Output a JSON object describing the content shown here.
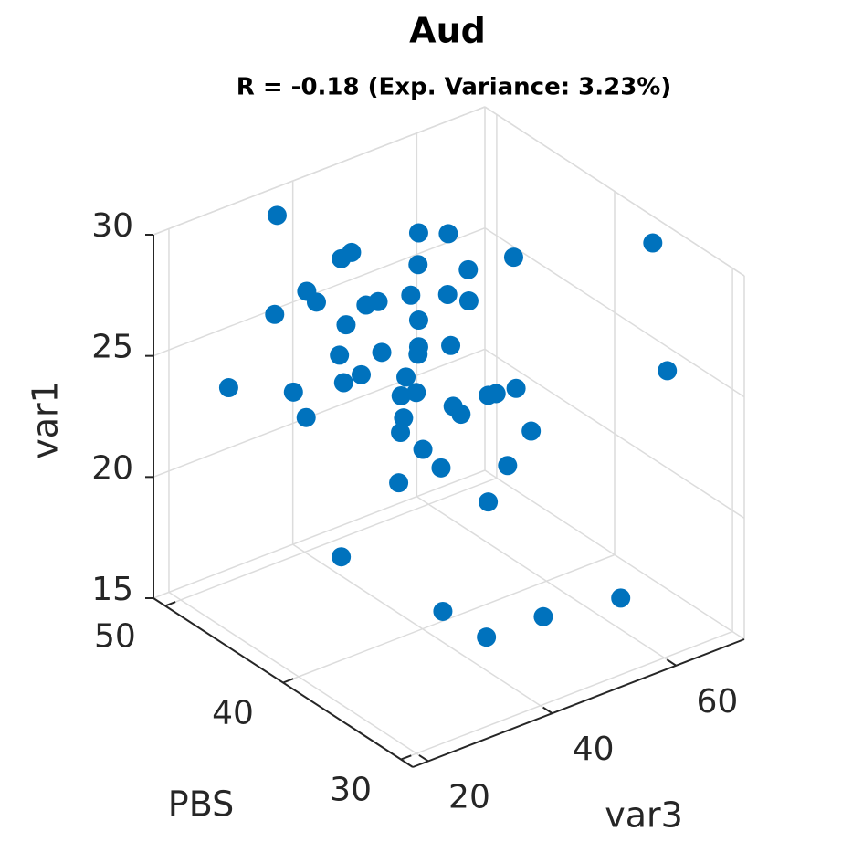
{
  "chart_data": {
    "type": "scatter3d",
    "title": "Aud",
    "subtitle": "R = -0.18 (Exp. Variance: 3.23%)",
    "xlabel": "var3",
    "ylabel": "PBS",
    "zlabel": "var1",
    "color": "#0072bd",
    "grid": true,
    "xlim": [
      17.5,
      71
    ],
    "ylim": [
      29,
      51
    ],
    "zlim": [
      15,
      30
    ],
    "xticks": [
      20,
      40,
      60
    ],
    "yticks": [
      30,
      40,
      50
    ],
    "zticks": [
      15,
      20,
      25,
      30
    ],
    "x": [
      28.9,
      24.7,
      28.7,
      30.2,
      31.3,
      31.4,
      32.2,
      34.3,
      35.2,
      34.7,
      34.2,
      34.5,
      36.0,
      36.4,
      37.4,
      37.8,
      40.9,
      43.4,
      40.8,
      45.1,
      40.2,
      43.3,
      45.2,
      40.9,
      40.9,
      40.8,
      43.6,
      39.8,
      40.7,
      39.4,
      39.6,
      39.3,
      41.2,
      42.8,
      39.2,
      43.8,
      44.5,
      46.8,
      47.5,
      49.2,
      49.0,
      50.5,
      48.4,
      46.8,
      60.8,
      62.0,
      34.3,
      42.9,
      46.7,
      51.5,
      58.1
    ],
    "y": [
      46.5,
      48.4,
      46.6,
      45.8,
      45.3,
      45.3,
      44.9,
      43.9,
      43.5,
      43.7,
      44.0,
      43.8,
      43.1,
      42.9,
      42.4,
      42.3,
      40.8,
      39.6,
      40.8,
      38.8,
      41.1,
      39.6,
      38.8,
      40.8,
      40.8,
      40.8,
      39.5,
      41.3,
      40.9,
      41.5,
      41.4,
      41.5,
      40.6,
      39.9,
      41.6,
      39.4,
      39.1,
      38.0,
      37.7,
      36.9,
      37.0,
      36.3,
      37.2,
      38.0,
      31.4,
      30.8,
      43.9,
      39.8,
      38.1,
      35.8,
      32.7
    ],
    "z": [
      31.1,
      23.8,
      27.0,
      23.9,
      22.9,
      28.1,
      27.7,
      29.6,
      29.9,
      26.9,
      25.6,
      24.5,
      24.9,
      27.8,
      28.0,
      25.9,
      31.0,
      31.1,
      29.7,
      29.7,
      28.4,
      28.6,
      28.4,
      27.4,
      26.3,
      26.0,
      26.5,
      25.0,
      24.4,
      24.2,
      23.3,
      22.7,
      22.1,
      21.4,
      20.6,
      24.0,
      23.7,
      24.6,
      24.7,
      25.0,
      30.4,
      23.3,
      21.8,
      20.2,
      31.6,
      26.4,
      17.3,
      15.5,
      14.6,
      15.7,
      16.8
    ]
  }
}
